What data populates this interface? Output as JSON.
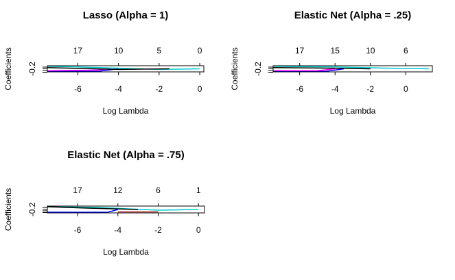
{
  "chart_data": [
    {
      "type": "line",
      "title": "Lasso (Alpha = 1)",
      "xlabel": "Log Lambda",
      "ylabel": "Coefficients",
      "xlim": [
        -7.5,
        0.2
      ],
      "ylim": [
        -0.25,
        -0.15
      ],
      "x_ticks": [
        -6,
        -4,
        -2,
        0
      ],
      "x_tick_labels": [
        "-6",
        "-4",
        "-2",
        "0"
      ],
      "y_ticks": [
        -0.2
      ],
      "y_tick_labels": [
        "-0.2"
      ],
      "top_ticks": [
        -6,
        -4,
        -2,
        0
      ],
      "top_tick_labels": [
        "17",
        "10",
        "5",
        "0"
      ],
      "series": [
        {
          "color": "#0000ff",
          "x": [
            -7.5,
            -5.0,
            -4.0
          ],
          "y": [
            -0.24,
            -0.24,
            -0.2
          ]
        },
        {
          "color": "#00cccc",
          "x": [
            -7.5,
            -6.0,
            -2.0,
            0.0
          ],
          "y": [
            -0.16,
            -0.17,
            -0.21,
            -0.2
          ]
        },
        {
          "color": "#ff00ff",
          "x": [
            -7.5,
            -5.0,
            -4.5
          ],
          "y": [
            -0.23,
            -0.22,
            -0.2
          ]
        },
        {
          "color": "#000000",
          "x": [
            -7.5,
            -4.0,
            -1.5
          ],
          "y": [
            -0.18,
            -0.21,
            -0.2
          ]
        }
      ]
    },
    {
      "type": "line",
      "title": "Elastic Net (Alpha = .25)",
      "xlabel": "Log Lambda",
      "ylabel": "Coefficients",
      "xlim": [
        -7.5,
        1.5
      ],
      "ylim": [
        -0.25,
        -0.15
      ],
      "x_ticks": [
        -6,
        -4,
        -2,
        0
      ],
      "x_tick_labels": [
        "-6",
        "-4",
        "-2",
        "0"
      ],
      "y_ticks": [
        -0.2
      ],
      "y_tick_labels": [
        "-0.2"
      ],
      "top_ticks": [
        -6,
        -4,
        -2,
        0
      ],
      "top_tick_labels": [
        "17",
        "15",
        "10",
        "6"
      ],
      "series": [
        {
          "color": "#0000ff",
          "x": [
            -7.5,
            -4.5,
            -3.5
          ],
          "y": [
            -0.24,
            -0.24,
            -0.2
          ]
        },
        {
          "color": "#00cccc",
          "x": [
            -7.5,
            -4.0,
            -1.0,
            1.3
          ],
          "y": [
            -0.16,
            -0.17,
            -0.19,
            -0.2
          ]
        },
        {
          "color": "#ff00ff",
          "x": [
            -7.5,
            -5.0,
            -4.0
          ],
          "y": [
            -0.23,
            -0.23,
            -0.2
          ]
        },
        {
          "color": "#000000",
          "x": [
            -7.5,
            -4.0,
            -2.0
          ],
          "y": [
            -0.18,
            -0.19,
            -0.2
          ]
        }
      ]
    },
    {
      "type": "line",
      "title": "Elastic Net (Alpha = .75)",
      "xlabel": "Log Lambda",
      "ylabel": "Coefficients",
      "xlim": [
        -7.5,
        0.3
      ],
      "ylim": [
        -0.25,
        -0.15
      ],
      "x_ticks": [
        -6,
        -4,
        -2,
        0
      ],
      "x_tick_labels": [
        "-6",
        "-4",
        "-2",
        "0"
      ],
      "y_ticks": [
        -0.2
      ],
      "y_tick_labels": [
        "-0.2"
      ],
      "top_ticks": [
        -6,
        -4,
        -2,
        0
      ],
      "top_tick_labels": [
        "17",
        "12",
        "6",
        "1"
      ],
      "series": [
        {
          "color": "#0000ff",
          "x": [
            -7.5,
            -4.5,
            -4.0
          ],
          "y": [
            -0.24,
            -0.24,
            -0.2
          ]
        },
        {
          "color": "#00cccc",
          "x": [
            -7.5,
            -5.0,
            -2.0,
            0.0
          ],
          "y": [
            -0.16,
            -0.17,
            -0.21,
            -0.2
          ]
        },
        {
          "color": "#b22222",
          "x": [
            -4.0,
            -2.0
          ],
          "y": [
            -0.235,
            -0.235
          ]
        },
        {
          "color": "#000000",
          "x": [
            -7.5,
            -5.5,
            -3.0
          ],
          "y": [
            -0.16,
            -0.18,
            -0.2
          ]
        }
      ]
    }
  ]
}
